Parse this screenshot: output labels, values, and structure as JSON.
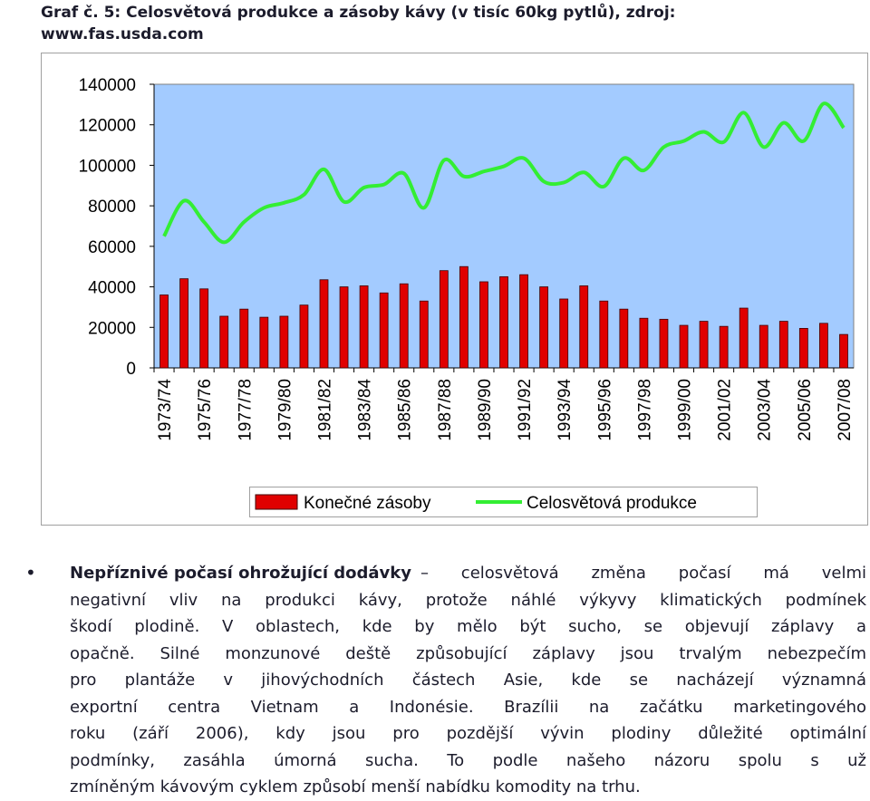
{
  "header": {
    "title_lines": [
      "Graf č. 5: Celosvětová produkce a zásoby kávy (v tisíc 60kg pytlů), zdroj:",
      "www.fas.usda.com"
    ]
  },
  "chart_data": {
    "type": "bar-line",
    "categories": [
      "1973/74",
      null,
      "1975/76",
      null,
      "1977/78",
      null,
      "1979/80",
      null,
      "1981/82",
      null,
      "1983/84",
      null,
      "1985/86",
      null,
      "1987/88",
      null,
      "1989/90",
      null,
      "1991/92",
      null,
      "1993/94",
      null,
      "1995/96",
      null,
      "1997/98",
      null,
      "1999/00",
      null,
      "2001/02",
      null,
      "2003/04",
      null,
      "2005/06",
      null,
      "2007/08"
    ],
    "series": [
      {
        "name": "Konečné zásoby",
        "type": "bar",
        "color": "#e00000",
        "values": [
          36000,
          44000,
          39000,
          25500,
          29000,
          25000,
          25500,
          31000,
          43500,
          40000,
          40500,
          37000,
          41500,
          33000,
          48000,
          50000,
          42500,
          45000,
          46000,
          40000,
          34000,
          40500,
          33000,
          29000,
          24500,
          24000,
          21000,
          23000,
          20500,
          29500,
          21000,
          23000,
          19500,
          22000,
          16500
        ]
      },
      {
        "name": "Celosvětová produkce",
        "type": "line",
        "color": "#33ee33",
        "values": [
          65000,
          82500,
          72000,
          62000,
          72000,
          79000,
          81500,
          85500,
          98000,
          82000,
          89000,
          90500,
          96000,
          79000,
          102500,
          94500,
          97000,
          99500,
          103500,
          92000,
          91500,
          96500,
          89500,
          103500,
          97500,
          109000,
          112000,
          116500,
          111500,
          126000,
          109000,
          121000,
          112000,
          130500,
          118500
        ]
      }
    ],
    "ylim": [
      0,
      140000
    ],
    "yticks": [
      0,
      20000,
      40000,
      60000,
      80000,
      100000,
      120000,
      140000
    ],
    "legend": "bottom",
    "plot_background": "#a3cbff"
  },
  "document": {
    "lead": "Nepříznivé počasí ohrožující dodávky",
    "lines": [
      "– celosvětová změna počasí má velmi",
      "negativní vliv na produkci kávy, protože náhlé výkyvy klimatických podmínek",
      "škodí plodině. V oblastech, kde by mělo být sucho, se objevují záplavy a",
      "opačně. Silné monzunové deště způsobující záplavy jsou trvalým nebezpečím",
      "pro plantáže v jihovýchodních částech Asie, kde se nacházejí významná",
      "exportní centra Vietnam a Indonésie. Brazílii na začátku marketingového",
      "roku (září 2006), kdy jsou pro pozdější vývin plodiny důležité optimální",
      "podmínky, zasáhla úmorná sucha. To podle našeho názoru spolu s už",
      "zmíněným kávovým cyklem způsobí menší nabídku komodity na trhu."
    ]
  }
}
